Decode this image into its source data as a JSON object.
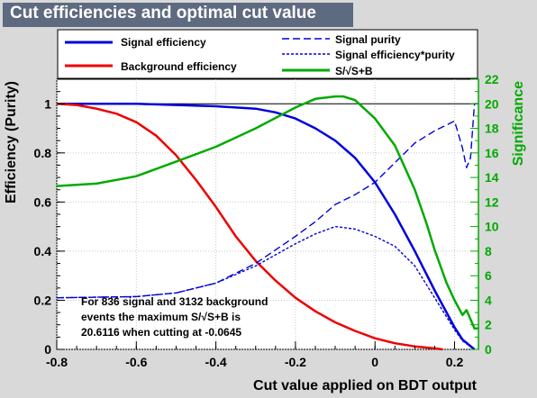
{
  "title": "Cut efficiencies and optimal cut value",
  "chart_data": {
    "type": "line",
    "xlabel": "Cut value applied on BDT output",
    "ylabel": "Efficiency (Purity)",
    "y2label": "Significance",
    "xlim": [
      -0.8,
      0.26
    ],
    "ylim": [
      0,
      1.1
    ],
    "y2lim": [
      0,
      22
    ],
    "x_ticks": [
      "-0.8",
      "-0.6",
      "-0.4",
      "-0.2",
      "0",
      "0.2"
    ],
    "y_ticks": [
      "0",
      "0.2",
      "0.4",
      "0.6",
      "0.8",
      "1"
    ],
    "y2_ticks": [
      "0",
      "2",
      "4",
      "6",
      "8",
      "10",
      "12",
      "14",
      "16",
      "18",
      "20",
      "22"
    ],
    "grid": true,
    "legend": [
      {
        "label": "Signal efficiency",
        "color": "#0000dd",
        "style": "solid"
      },
      {
        "label": "Background efficiency",
        "color": "#ee0000",
        "style": "solid"
      },
      {
        "label": "Signal purity",
        "color": "#0000dd",
        "style": "dashed"
      },
      {
        "label": "Signal efficiency*purity",
        "color": "#0000dd",
        "style": "dotted"
      },
      {
        "label": "S/√S+B",
        "color": "#00aa00",
        "style": "solid"
      }
    ],
    "series": [
      {
        "name": "Signal efficiency",
        "axis": "left",
        "color": "#0000dd",
        "style": "solid",
        "x": [
          -0.8,
          -0.6,
          -0.4,
          -0.3,
          -0.25,
          -0.2,
          -0.15,
          -0.1,
          -0.05,
          0.0,
          0.05,
          0.1,
          0.15,
          0.2,
          0.22,
          0.25
        ],
        "y": [
          1.0,
          1.0,
          0.99,
          0.98,
          0.965,
          0.94,
          0.9,
          0.85,
          0.78,
          0.68,
          0.55,
          0.4,
          0.24,
          0.09,
          0.04,
          0.0
        ]
      },
      {
        "name": "Background efficiency",
        "axis": "left",
        "color": "#ee0000",
        "style": "solid",
        "x": [
          -0.8,
          -0.75,
          -0.7,
          -0.65,
          -0.6,
          -0.55,
          -0.5,
          -0.45,
          -0.4,
          -0.35,
          -0.3,
          -0.25,
          -0.2,
          -0.15,
          -0.1,
          -0.05,
          0.0,
          0.05,
          0.1,
          0.15,
          0.17
        ],
        "y": [
          1.0,
          0.995,
          0.98,
          0.96,
          0.925,
          0.87,
          0.79,
          0.69,
          0.58,
          0.46,
          0.36,
          0.28,
          0.21,
          0.155,
          0.11,
          0.075,
          0.045,
          0.025,
          0.012,
          0.004,
          0.0
        ]
      },
      {
        "name": "Signal purity",
        "axis": "left",
        "color": "#0000dd",
        "style": "dashed",
        "x": [
          -0.8,
          -0.6,
          -0.5,
          -0.4,
          -0.3,
          -0.2,
          -0.15,
          -0.1,
          -0.05,
          0.0,
          0.05,
          0.1,
          0.15,
          0.2,
          0.22,
          0.23,
          0.24,
          0.25,
          0.26
        ],
        "y": [
          0.21,
          0.215,
          0.23,
          0.27,
          0.35,
          0.46,
          0.52,
          0.59,
          0.63,
          0.68,
          0.76,
          0.84,
          0.89,
          0.93,
          0.82,
          0.74,
          0.78,
          1.0,
          1.0
        ]
      },
      {
        "name": "Signal efficiency*purity",
        "axis": "left",
        "color": "#0000dd",
        "style": "dotted",
        "x": [
          -0.8,
          -0.6,
          -0.5,
          -0.4,
          -0.3,
          -0.2,
          -0.15,
          -0.1,
          -0.05,
          0.0,
          0.05,
          0.1,
          0.15,
          0.2,
          0.22,
          0.25
        ],
        "y": [
          0.21,
          0.215,
          0.23,
          0.27,
          0.34,
          0.43,
          0.47,
          0.5,
          0.49,
          0.46,
          0.42,
          0.34,
          0.21,
          0.08,
          0.035,
          0.0
        ]
      },
      {
        "name": "S/√S+B",
        "axis": "right",
        "color": "#00aa00",
        "style": "solid",
        "x": [
          -0.8,
          -0.7,
          -0.6,
          -0.5,
          -0.4,
          -0.3,
          -0.2,
          -0.15,
          -0.1,
          -0.08,
          -0.05,
          0.0,
          0.05,
          0.1,
          0.13,
          0.15,
          0.18,
          0.2,
          0.22,
          0.23,
          0.25,
          0.26
        ],
        "y": [
          13.3,
          13.5,
          14.1,
          15.3,
          16.5,
          18.0,
          19.7,
          20.4,
          20.6,
          20.6,
          20.3,
          18.8,
          16.6,
          13.0,
          10.2,
          8.1,
          5.4,
          4.0,
          2.8,
          3.2,
          1.7,
          1.7
        ]
      }
    ],
    "annotation": [
      "For 836 signal and 3132 background",
      "events the maximum S/√S+B is",
      "20.6116 when cutting at -0.0645"
    ]
  }
}
